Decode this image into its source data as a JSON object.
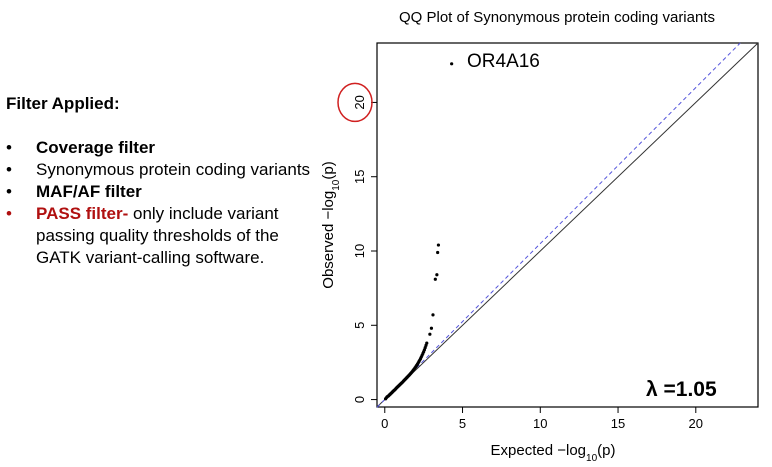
{
  "filters": {
    "heading": "Filter Applied:",
    "bullet": "•",
    "items": [
      {
        "bold": "Coverage filter",
        "rest": ""
      },
      {
        "bold": "",
        "rest": "Synonymous protein coding variants"
      },
      {
        "bold": "MAF/AF filter",
        "rest": ""
      },
      {
        "bold": "PASS filter-",
        "rest": " only include variant passing quality thresholds of the GATK variant-calling software."
      }
    ],
    "colors": {
      "text": "#000000",
      "pass_filter": "#b01010"
    }
  },
  "chart_data": {
    "type": "scatter",
    "title": "QQ Plot of Synonymous protein coding variants",
    "xlabel_main": "Expected ",
    "xlabel_suffix": "−log",
    "xlabel_sub": "10",
    "xlabel_end": "(p)",
    "ylabel_main": "Observed ",
    "ylabel_suffix": "−log",
    "ylabel_sub": "10",
    "ylabel_end": "(p)",
    "xlim": [
      -0.5,
      24
    ],
    "ylim": [
      -0.5,
      24
    ],
    "xticks": [
      0,
      5,
      10,
      15,
      20
    ],
    "yticks": [
      0,
      5,
      10,
      15,
      20
    ],
    "xtick_labels": [
      "0",
      "5",
      "10",
      "15",
      "20"
    ],
    "ytick_labels": [
      "0",
      "5",
      "10",
      "15",
      "20"
    ],
    "grid": false,
    "series": [
      {
        "points": [
          [
            0.05,
            0.05
          ],
          [
            0.1,
            0.12
          ],
          [
            0.15,
            0.18
          ],
          [
            0.2,
            0.22
          ],
          [
            0.25,
            0.26
          ],
          [
            0.3,
            0.32
          ],
          [
            0.35,
            0.36
          ],
          [
            0.4,
            0.42
          ],
          [
            0.45,
            0.46
          ],
          [
            0.5,
            0.52
          ],
          [
            0.55,
            0.57
          ],
          [
            0.6,
            0.62
          ],
          [
            0.65,
            0.66
          ],
          [
            0.7,
            0.72
          ],
          [
            0.75,
            0.78
          ],
          [
            0.8,
            0.83
          ],
          [
            0.85,
            0.88
          ],
          [
            0.9,
            0.93
          ],
          [
            0.95,
            0.98
          ],
          [
            1.0,
            1.03
          ],
          [
            1.05,
            1.08
          ],
          [
            1.1,
            1.13
          ],
          [
            1.15,
            1.18
          ],
          [
            1.2,
            1.24
          ],
          [
            1.25,
            1.29
          ],
          [
            1.3,
            1.35
          ],
          [
            1.35,
            1.4
          ],
          [
            1.4,
            1.46
          ],
          [
            1.45,
            1.51
          ],
          [
            1.5,
            1.57
          ],
          [
            1.55,
            1.62
          ],
          [
            1.6,
            1.68
          ],
          [
            1.65,
            1.74
          ],
          [
            1.7,
            1.8
          ],
          [
            1.75,
            1.86
          ],
          [
            1.8,
            1.93
          ],
          [
            1.85,
            2.0
          ],
          [
            1.9,
            2.07
          ],
          [
            1.95,
            2.14
          ],
          [
            2.0,
            2.22
          ],
          [
            2.05,
            2.3
          ],
          [
            2.1,
            2.38
          ],
          [
            2.15,
            2.47
          ],
          [
            2.2,
            2.56
          ],
          [
            2.25,
            2.66
          ],
          [
            2.3,
            2.76
          ],
          [
            2.35,
            2.87
          ],
          [
            2.4,
            2.98
          ],
          [
            2.45,
            3.1
          ],
          [
            2.5,
            3.22
          ],
          [
            2.55,
            3.35
          ],
          [
            2.6,
            3.5
          ],
          [
            2.65,
            3.65
          ],
          [
            2.7,
            3.8
          ],
          [
            2.9,
            4.4
          ],
          [
            3.0,
            4.8
          ],
          [
            3.1,
            5.7
          ],
          [
            3.25,
            8.1
          ],
          [
            3.35,
            8.4
          ],
          [
            3.4,
            9.9
          ],
          [
            3.45,
            10.4
          ],
          [
            4.3,
            22.6
          ]
        ]
      }
    ],
    "reference_lines": [
      {
        "kind": "identity",
        "slope": 1,
        "color": "#333333"
      },
      {
        "kind": "lambda",
        "slope": 1.05,
        "color": "#5555dd",
        "dash": true
      }
    ],
    "annotations": {
      "label": "OR4A16",
      "label_at": [
        4.3,
        22.6
      ],
      "lambda_text": "λ =1.05",
      "circle_color": "#d02020",
      "circle_at_tick": 20
    },
    "colors": {
      "points": "#000000",
      "frame": "#000000"
    }
  }
}
